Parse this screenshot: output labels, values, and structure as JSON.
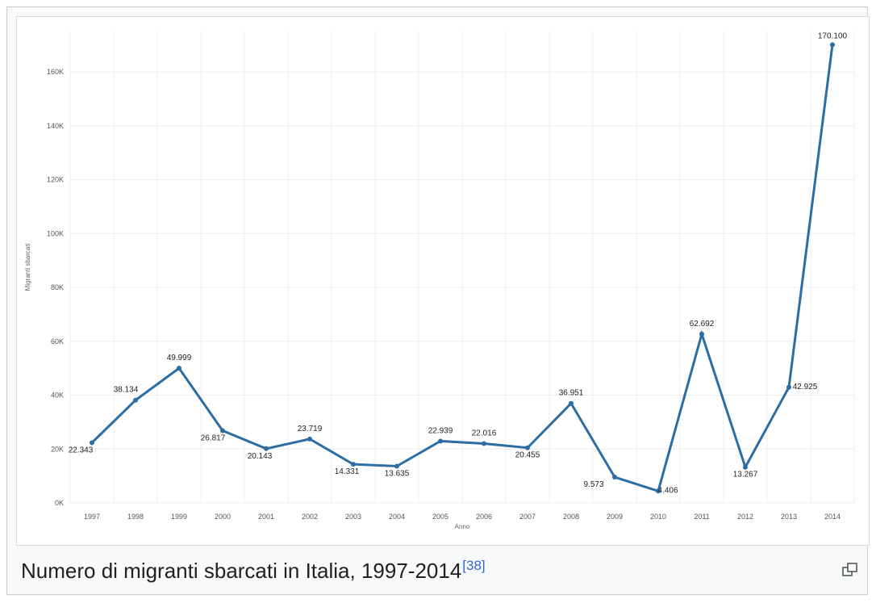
{
  "caption": {
    "text": "Numero di migranti sbarcati in Italia, 1997-2014",
    "reference": "[38]"
  },
  "magnify_icon": "magnify-clip-icon",
  "colors": {
    "line": "#2c6ea3",
    "grid": "#ececec",
    "reference_link": "#3366cc"
  },
  "chart_data": {
    "type": "line",
    "title": "",
    "xlabel": "Anno",
    "ylabel": "Migranti sbarcati",
    "ylim": [
      0,
      175000
    ],
    "y_ticks": [
      "0K",
      "20K",
      "40K",
      "60K",
      "80K",
      "100K",
      "120K",
      "140K",
      "160K"
    ],
    "y_tick_values": [
      0,
      20000,
      40000,
      60000,
      80000,
      100000,
      120000,
      140000,
      160000
    ],
    "categories": [
      "1997",
      "1998",
      "1999",
      "2000",
      "2001",
      "2002",
      "2003",
      "2004",
      "2005",
      "2006",
      "2007",
      "2008",
      "2009",
      "2010",
      "2011",
      "2012",
      "2013",
      "2014"
    ],
    "values": [
      22343,
      38134,
      49999,
      26817,
      20143,
      23719,
      14331,
      13635,
      22939,
      22016,
      20455,
      36951,
      9573,
      4406,
      62692,
      13267,
      42925,
      170100
    ],
    "data_labels": [
      "22.343",
      "38.134",
      "49.999",
      "26.817",
      "20.143",
      "23.719",
      "14.331",
      "13.635",
      "22.939",
      "22.016",
      "20.455",
      "36.951",
      "9.573",
      "4.406",
      "62.692",
      "13.267",
      "42.925",
      "170.100"
    ],
    "grid": true,
    "legend": "none"
  }
}
